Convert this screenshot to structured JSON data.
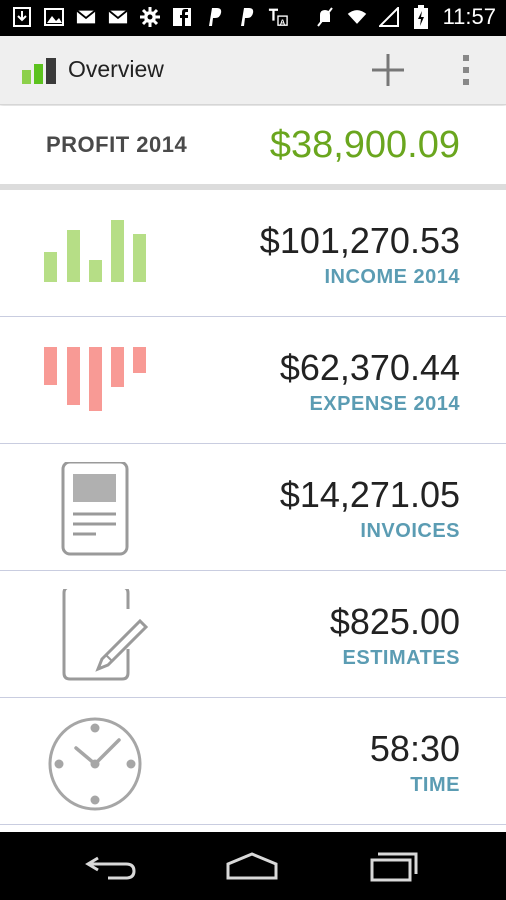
{
  "status_bar": {
    "time": "11:57",
    "left_icons": [
      "download-icon",
      "image-icon",
      "gmail-icon",
      "gmail-icon",
      "settings-icon",
      "facebook-icon",
      "paypal-icon",
      "paypal-icon",
      "translate-icon"
    ],
    "right_icons": [
      "mute-icon",
      "wifi-icon",
      "signal-icon",
      "battery-icon"
    ]
  },
  "app_bar": {
    "title": "Overview",
    "actions": [
      "add-icon",
      "overflow-menu-icon"
    ]
  },
  "profit": {
    "label": "PROFIT 2014",
    "value": "$38,900.09"
  },
  "rows": [
    {
      "value": "$101,270.53",
      "label": "INCOME 2014",
      "icon": "income-bars-icon"
    },
    {
      "value": "$62,370.44",
      "label": "EXPENSE 2014",
      "icon": "expense-bars-icon"
    },
    {
      "value": "$14,271.05",
      "label": "INVOICES",
      "icon": "invoice-document-icon"
    },
    {
      "value": "$825.00",
      "label": "ESTIMATES",
      "icon": "estimate-pencil-icon"
    },
    {
      "value": "58:30",
      "label": "TIME",
      "icon": "clock-icon"
    }
  ],
  "colors": {
    "profit_green": "#6aa61e",
    "label_blue": "#5b9cb3",
    "income_green": "#b6de86",
    "expense_red": "#f89a95",
    "icon_gray": "#9a9a9a"
  },
  "nav_bar": [
    "back-icon",
    "home-icon",
    "recent-apps-icon"
  ]
}
